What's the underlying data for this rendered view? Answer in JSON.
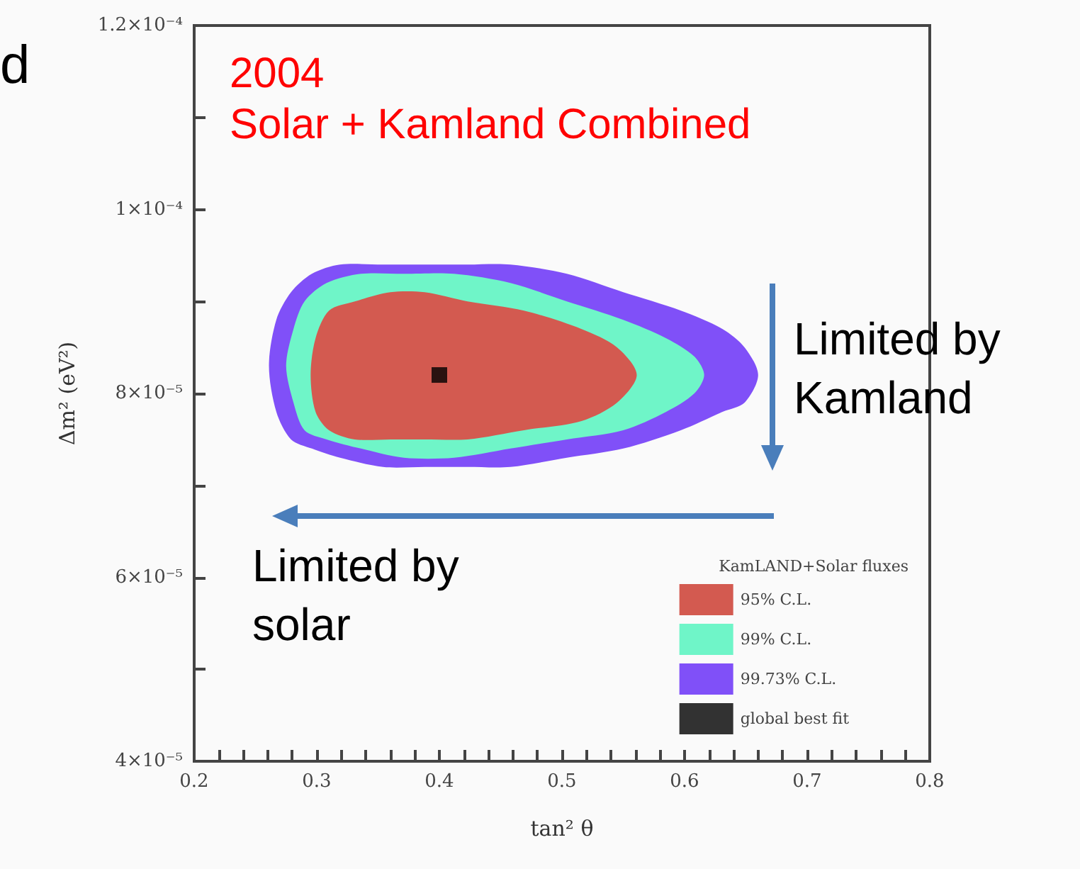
{
  "chart_data": {
    "type": "area",
    "title": "2004",
    "subtitle": "Solar + Kamland Combined",
    "xlabel": "tan² θ",
    "ylabel": "Δm² (eV²)",
    "legend_title": "KamLAND+Solar fluxes",
    "legend": "bottom right",
    "grid": false,
    "annotations": [
      "d",
      "Limited by Kamland",
      "Limited by solar"
    ],
    "xlim": [
      0.2,
      0.8
    ],
    "xticks": [
      0.2,
      {
        "value": 0.22,
        "label": null
      },
      {
        "value": 0.24,
        "label": null
      },
      {
        "value": 0.26,
        "label": null
      },
      {
        "value": 0.28,
        "label": null
      },
      0.3,
      {
        "value": 0.32,
        "label": null
      },
      {
        "value": 0.34,
        "label": null
      },
      {
        "value": 0.36,
        "label": null
      },
      {
        "value": 0.38,
        "label": null
      },
      0.4,
      {
        "value": 0.42,
        "label": null
      },
      {
        "value": 0.44,
        "label": null
      },
      {
        "value": 0.46,
        "label": null
      },
      {
        "value": 0.48,
        "label": null
      },
      0.5,
      {
        "value": 0.52,
        "label": null
      },
      {
        "value": 0.54,
        "label": null
      },
      {
        "value": 0.56,
        "label": null
      },
      {
        "value": 0.58,
        "label": null
      },
      0.6,
      {
        "value": 0.62,
        "label": null
      },
      {
        "value": 0.64,
        "label": null
      },
      {
        "value": 0.66,
        "label": null
      },
      {
        "value": 0.68,
        "label": null
      },
      0.7,
      {
        "value": 0.72,
        "label": null
      },
      {
        "value": 0.74,
        "label": null
      },
      {
        "value": 0.76,
        "label": null
      },
      {
        "value": 0.78,
        "label": null
      },
      0.8
    ],
    "ylim": [
      4e-05,
      0.00012
    ],
    "yticks": [
      {
        "value": 4e-05,
        "label": "4×10⁻⁵"
      },
      {
        "value": 5e-05,
        "label": null
      },
      {
        "value": 6e-05,
        "label": "6×10⁻⁵"
      },
      {
        "value": 7e-05,
        "label": null
      },
      {
        "value": 8e-05,
        "label": "8×10⁻⁵"
      },
      {
        "value": 9e-05,
        "label": null
      },
      {
        "value": 0.0001,
        "label": "1×10⁻⁴"
      },
      {
        "value": 0.00011,
        "label": null
      },
      {
        "value": 0.00012,
        "label": "1.2×10⁻⁴"
      }
    ],
    "series": [
      {
        "name": "95% C.L.",
        "color": "#d35a50",
        "x": [
          0.295,
          0.299,
          0.31,
          0.331,
          0.36,
          0.388,
          0.423,
          0.469,
          0.516,
          0.545,
          0.561,
          0.545,
          0.516,
          0.469,
          0.423,
          0.388,
          0.36,
          0.331,
          0.31,
          0.299
        ],
        "values": [
          8.2e-05,
          8.6e-05,
          8.9e-05,
          9e-05,
          9.1e-05,
          9.1e-05,
          9e-05,
          8.9e-05,
          8.7e-05,
          8.5e-05,
          8.2e-05,
          7.9e-05,
          7.7e-05,
          7.6e-05,
          7.5e-05,
          7.5e-05,
          7.5e-05,
          7.5e-05,
          7.6e-05,
          7.8e-05
        ]
      },
      {
        "name": "99% C.L.",
        "color": "#6ff5c8",
        "x": [
          0.275,
          0.281,
          0.29,
          0.308,
          0.336,
          0.371,
          0.412,
          0.458,
          0.504,
          0.55,
          0.585,
          0.608,
          0.616,
          0.608,
          0.585,
          0.55,
          0.504,
          0.458,
          0.412,
          0.371,
          0.336,
          0.308,
          0.29,
          0.281
        ],
        "values": [
          8.3e-05,
          8.7e-05,
          9e-05,
          9.2e-05,
          9.3e-05,
          9.3e-05,
          9.3e-05,
          9.2e-05,
          9e-05,
          8.8e-05,
          8.6e-05,
          8.4e-05,
          8.2e-05,
          8e-05,
          7.8e-05,
          7.6e-05,
          7.5e-05,
          7.4e-05,
          7.3e-05,
          7.3e-05,
          7.4e-05,
          7.5e-05,
          7.6e-05,
          7.9e-05
        ]
      },
      {
        "name": "99.73% C.L.",
        "color": "#8050f8",
        "x": [
          0.261,
          0.267,
          0.279,
          0.296,
          0.319,
          0.354,
          0.388,
          0.423,
          0.458,
          0.504,
          0.55,
          0.597,
          0.631,
          0.649,
          0.66,
          0.649,
          0.631,
          0.597,
          0.55,
          0.504,
          0.458,
          0.423,
          0.388,
          0.354,
          0.319,
          0.296,
          0.279,
          0.267
        ],
        "values": [
          8.3e-05,
          8.8e-05,
          9.1e-05,
          9.3e-05,
          9.4e-05,
          9.4e-05,
          9.4e-05,
          9.4e-05,
          9.4e-05,
          9.3e-05,
          9.1e-05,
          8.9e-05,
          8.7e-05,
          8.5e-05,
          8.2e-05,
          7.9e-05,
          7.8e-05,
          7.6e-05,
          7.4e-05,
          7.3e-05,
          7.2e-05,
          7.2e-05,
          7.2e-05,
          7.2e-05,
          7.3e-05,
          7.4e-05,
          7.5e-05,
          7.8e-05
        ]
      },
      {
        "name": "global best fit",
        "type": "scatter",
        "color": "#000000",
        "marker": "square",
        "x": [
          0.4
        ],
        "values": [
          8.2e-05
        ]
      }
    ]
  }
}
